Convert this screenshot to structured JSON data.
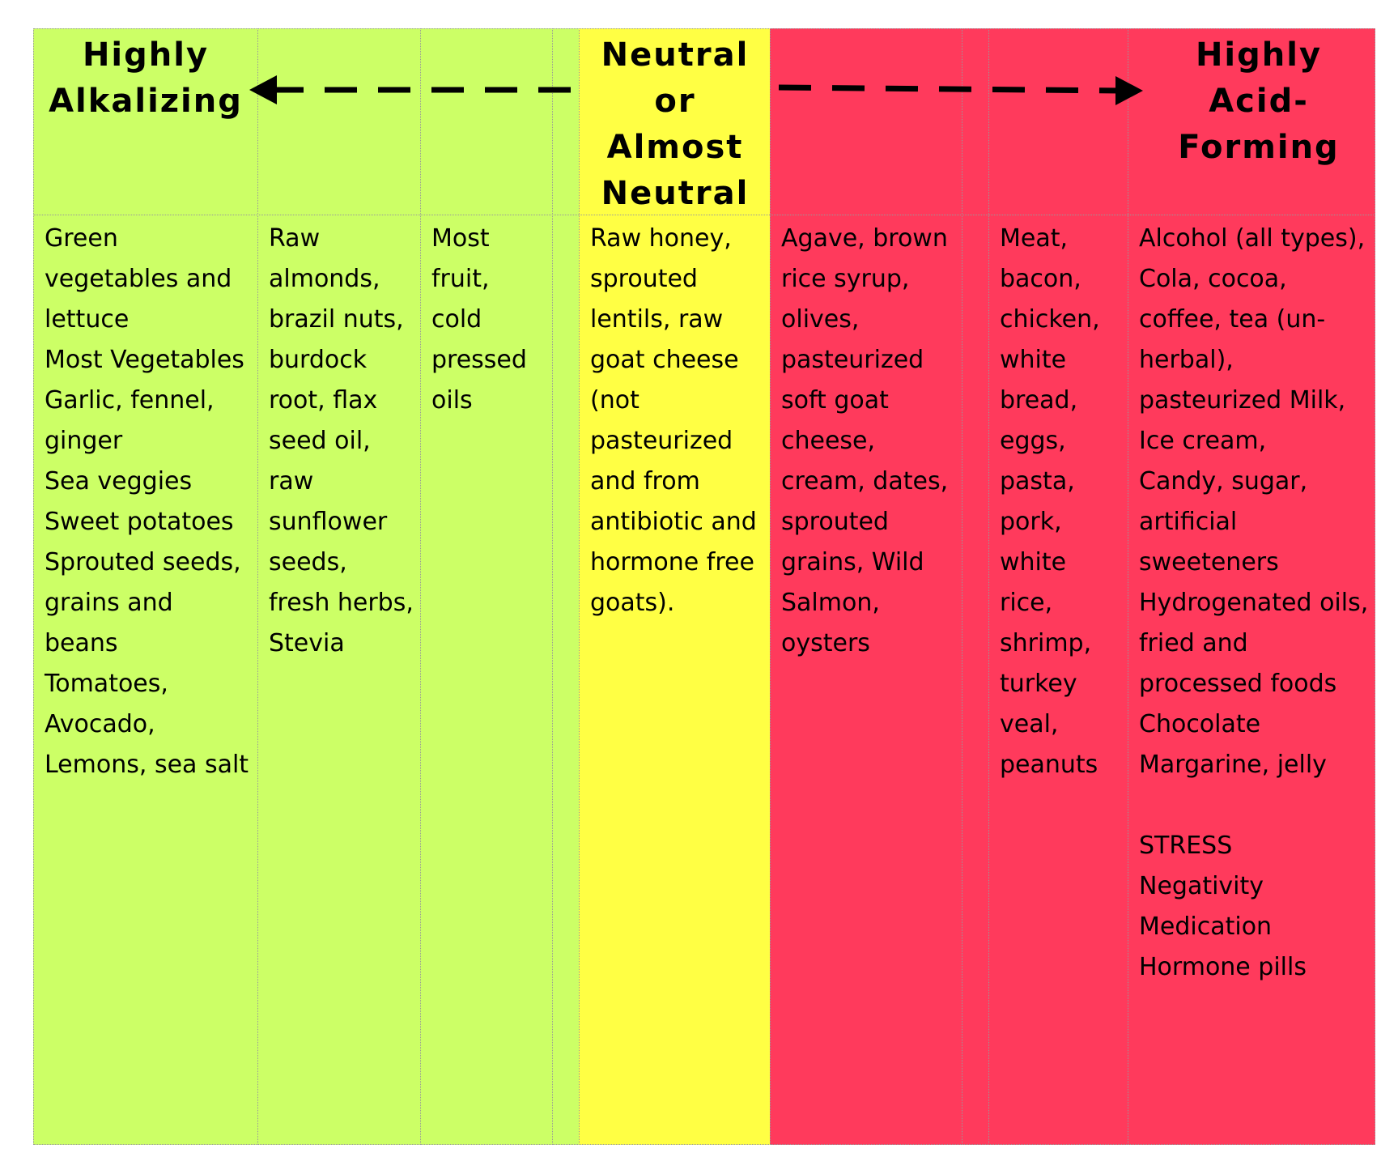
{
  "header": {
    "left": "Highly Alkalizing",
    "center": "Neutral or Almost Neutral",
    "right": "Highly Acid-Forming"
  },
  "columns": [
    [
      "Green vegetables and lettuce",
      "Most Vegetables",
      "Garlic, fennel, ginger",
      "Sea veggies",
      "Sweet potatoes",
      "Sprouted seeds, grains and beans",
      "Tomatoes, Avocado, Lemons, sea salt"
    ],
    [
      "Raw almonds, brazil nuts, burdock root, flax seed oil, raw sunflower seeds, fresh herbs, Stevia"
    ],
    [
      "Most fruit, cold pressed oils"
    ],
    [
      "Raw honey, sprouted lentils, raw goat cheese (not pasteurized and from antibiotic and hormone free goats)."
    ],
    [
      "Agave, brown rice syrup, olives, pasteurized soft goat cheese, cream, dates, sprouted grains, Wild Salmon, oysters"
    ],
    [
      "Meat, bacon, chicken, white bread, eggs, pasta, pork, white rice, shrimp, turkey veal, peanuts"
    ],
    [
      "Alcohol (all types), Cola, cocoa, coffee, tea (un-herbal), pasteurized Milk,",
      "Ice cream,",
      "Candy, sugar, artificial sweeteners",
      "Hydrogenated oils, fried and processed foods",
      "Chocolate",
      "Margarine, jelly",
      "STRESS",
      "Negativity",
      "Medication",
      "Hormone pills"
    ]
  ]
}
